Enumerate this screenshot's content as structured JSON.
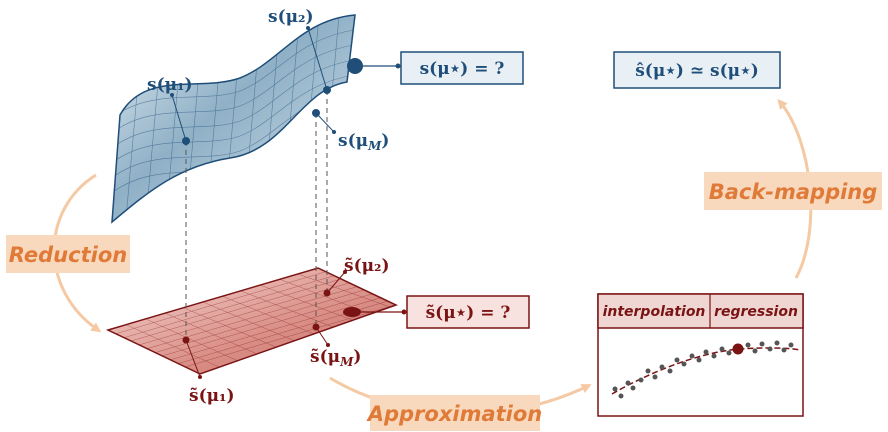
{
  "colors": {
    "blue_dark": "#1f4e79",
    "blue_light": "#b9ccd9",
    "red_dark": "#7a1414",
    "red_light": "#e3a6a0",
    "step_fill": "#f9d9bd",
    "step_text": "#e07a38",
    "arrow": "#f5c9a3"
  },
  "upper_manifold": {
    "mu1": "s(μ₁)",
    "mu2": "s(μ₂)",
    "muM": "s(μ",
    "muM_sub": "M",
    "muM_close": ")",
    "query": "s(μ⋆) = ?"
  },
  "lower_plane": {
    "mu1": "s̃(μ₁)",
    "mu2": "s̃(μ₂)",
    "muM": "s̃(μ",
    "muM_sub": "M",
    "muM_close": ")",
    "query": "s̃(μ⋆) = ?"
  },
  "result": "ŝ(μ⋆) ≃ s(μ⋆)",
  "steps": {
    "reduction": "Reduction",
    "approximation": "Approximation",
    "back_mapping": "Back-mapping"
  },
  "approx_panel": {
    "tab1": "interpolation",
    "tab2": "regression"
  }
}
